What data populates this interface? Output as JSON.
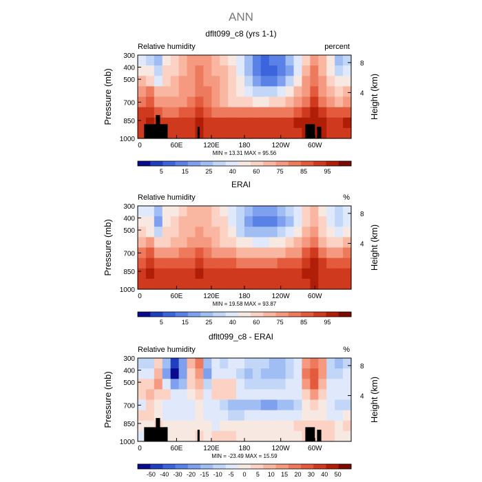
{
  "page_title": "ANN",
  "chart_data": [
    {
      "type": "heatmap",
      "title": "dflt099_c8 (yrs 1-1)",
      "subtitle_left": "Relative humidity",
      "subtitle_right": "percent",
      "ylabel": "Pressure (mb)",
      "ylabel_right": "Height (km)",
      "x_ticks": [
        "0",
        "60E",
        "120E",
        "180",
        "120W",
        "60W"
      ],
      "y_ticks": [
        "300",
        "400",
        "500",
        "700",
        "850",
        "1000"
      ],
      "y_right_ticks": [
        "8",
        "4"
      ],
      "stats": "MIN =  13.31   MAX =  95.56",
      "colorbar_labels": [
        "5",
        "15",
        "25",
        "40",
        "60",
        "75",
        "85",
        "95"
      ],
      "colorbar_colors": [
        "#0a0a8c",
        "#1f3fbf",
        "#3c64dc",
        "#5a82e6",
        "#7ea0ee",
        "#a0bef4",
        "#c2d6f8",
        "#dfe9fb",
        "#f8e8e2",
        "#fbd2c4",
        "#f9b7a2",
        "#f59a80",
        "#ee7a5d",
        "#e35a3c",
        "#cf3a1f",
        "#b01e08",
        "#7a0a02"
      ],
      "value_range": [
        0,
        100
      ],
      "terrain": true,
      "rows": [
        [
          42,
          40,
          32,
          50,
          55,
          60,
          65,
          70,
          66,
          60,
          58,
          52,
          45,
          34,
          22,
          16,
          18,
          22,
          30,
          42,
          58,
          70,
          62,
          48,
          32,
          36
        ],
        [
          52,
          48,
          36,
          55,
          58,
          62,
          67,
          72,
          68,
          62,
          60,
          55,
          46,
          30,
          18,
          13,
          15,
          20,
          28,
          42,
          60,
          72,
          64,
          50,
          36,
          42
        ],
        [
          60,
          56,
          46,
          58,
          62,
          66,
          70,
          74,
          70,
          65,
          62,
          56,
          48,
          36,
          26,
          20,
          22,
          28,
          38,
          52,
          66,
          75,
          66,
          56,
          48,
          52
        ],
        [
          66,
          72,
          60,
          62,
          64,
          66,
          70,
          76,
          72,
          66,
          62,
          56,
          50,
          44,
          40,
          38,
          40,
          45,
          52,
          60,
          70,
          80,
          70,
          62,
          58,
          60
        ],
        [
          72,
          82,
          68,
          66,
          66,
          68,
          72,
          78,
          72,
          66,
          62,
          58,
          56,
          54,
          52,
          52,
          54,
          56,
          60,
          66,
          76,
          86,
          74,
          66,
          64,
          68
        ],
        [
          84,
          88,
          80,
          76,
          76,
          78,
          80,
          84,
          80,
          76,
          74,
          72,
          72,
          72,
          72,
          72,
          72,
          74,
          76,
          80,
          86,
          90,
          84,
          78,
          78,
          82
        ],
        [
          88,
          90,
          88,
          86,
          86,
          88,
          88,
          90,
          88,
          86,
          86,
          86,
          86,
          86,
          86,
          86,
          86,
          86,
          88,
          90,
          92,
          94,
          90,
          88,
          88,
          90
        ],
        [
          86,
          88,
          88,
          86,
          86,
          88,
          88,
          90,
          88,
          88,
          88,
          88,
          86,
          86,
          86,
          86,
          86,
          86,
          86,
          88,
          90,
          92,
          90,
          88,
          88,
          88
        ]
      ]
    },
    {
      "type": "heatmap",
      "title": "ERAI",
      "subtitle_left": "Relative humidity",
      "subtitle_right": "%",
      "ylabel": "Pressure (mb)",
      "ylabel_right": "Height (km)",
      "x_ticks": [
        "0",
        "60E",
        "120E",
        "180",
        "120W",
        "60W"
      ],
      "y_ticks": [
        "300",
        "400",
        "500",
        "700",
        "850",
        "1000"
      ],
      "y_right_ticks": [
        "8",
        "4"
      ],
      "stats": "MIN =  19.58   MAX =  93.87",
      "colorbar_labels": [
        "5",
        "15",
        "25",
        "40",
        "60",
        "75",
        "85",
        "95"
      ],
      "colorbar_colors": [
        "#0a0a8c",
        "#1f3fbf",
        "#3c64dc",
        "#5a82e6",
        "#7ea0ee",
        "#a0bef4",
        "#c2d6f8",
        "#dfe9fb",
        "#f8e8e2",
        "#fbd2c4",
        "#f9b7a2",
        "#f59a80",
        "#ee7a5d",
        "#e35a3c",
        "#cf3a1f",
        "#b01e08",
        "#7a0a02"
      ],
      "value_range": [
        0,
        100
      ],
      "terrain": false,
      "rows": [
        [
          46,
          44,
          30,
          48,
          52,
          58,
          60,
          62,
          60,
          56,
          52,
          46,
          38,
          30,
          26,
          24,
          26,
          30,
          36,
          46,
          56,
          60,
          52,
          44,
          38,
          42
        ],
        [
          50,
          48,
          26,
          50,
          54,
          60,
          62,
          64,
          62,
          58,
          54,
          46,
          36,
          24,
          20,
          20,
          22,
          28,
          34,
          46,
          58,
          62,
          54,
          46,
          40,
          44
        ],
        [
          54,
          52,
          38,
          54,
          58,
          62,
          64,
          66,
          64,
          60,
          56,
          48,
          40,
          32,
          30,
          30,
          32,
          36,
          42,
          52,
          62,
          66,
          58,
          50,
          46,
          50
        ],
        [
          62,
          66,
          56,
          58,
          60,
          64,
          66,
          70,
          66,
          62,
          58,
          54,
          50,
          48,
          46,
          46,
          48,
          50,
          54,
          60,
          68,
          76,
          64,
          58,
          56,
          60
        ],
        [
          74,
          80,
          70,
          68,
          70,
          72,
          74,
          78,
          74,
          70,
          68,
          66,
          64,
          62,
          62,
          62,
          62,
          64,
          66,
          70,
          78,
          84,
          74,
          70,
          70,
          74
        ],
        [
          82,
          86,
          80,
          78,
          78,
          80,
          82,
          84,
          82,
          80,
          78,
          78,
          76,
          76,
          76,
          76,
          76,
          78,
          80,
          82,
          86,
          90,
          84,
          80,
          80,
          82
        ],
        [
          88,
          90,
          86,
          86,
          88,
          88,
          88,
          90,
          88,
          88,
          86,
          86,
          86,
          86,
          86,
          86,
          86,
          86,
          88,
          88,
          90,
          92,
          88,
          86,
          88,
          88
        ],
        [
          88,
          88,
          86,
          86,
          86,
          88,
          88,
          88,
          88,
          86,
          86,
          86,
          86,
          86,
          86,
          86,
          86,
          86,
          86,
          88,
          88,
          90,
          88,
          86,
          86,
          88
        ]
      ]
    },
    {
      "type": "heatmap",
      "title": "dflt099_c8 - ERAI",
      "subtitle_left": "Relative humidity",
      "subtitle_right": "%",
      "ylabel": "Pressure (mb)",
      "ylabel_right": "Height (km)",
      "x_ticks": [
        "0",
        "60E",
        "120E",
        "180",
        "120W",
        "60W"
      ],
      "y_ticks": [
        "300",
        "400",
        "500",
        "700",
        "850",
        "1000"
      ],
      "y_right_ticks": [
        "8",
        "4"
      ],
      "stats": "MIN = -23.49   MAX =  15.59",
      "colorbar_labels": [
        "-50",
        "-40",
        "-30",
        "-20",
        "-15",
        "-10",
        "-5",
        "0",
        "5",
        "10",
        "15",
        "20",
        "30",
        "40",
        "50"
      ],
      "colorbar_colors": [
        "#0a0a8c",
        "#1f3fbf",
        "#3c64dc",
        "#5a82e6",
        "#7ea0ee",
        "#a0bef4",
        "#c2d6f8",
        "#dfe9fb",
        "#f8e8e2",
        "#fbd2c4",
        "#f9b7a2",
        "#f59a80",
        "#ee7a5d",
        "#e35a3c",
        "#cf3a1f",
        "#b01e08",
        "#7a0a02"
      ],
      "value_range": [
        -24,
        24
      ],
      "terrain": true,
      "rows": [
        [
          -6,
          -6,
          4,
          -8,
          -20,
          -10,
          6,
          10,
          -8,
          -4,
          -6,
          -2,
          -4,
          -6,
          -6,
          -6,
          -8,
          -8,
          -6,
          -4,
          8,
          12,
          8,
          -6,
          -8,
          -6
        ],
        [
          -4,
          -2,
          6,
          -10,
          -22,
          -12,
          4,
          8,
          -10,
          -2,
          -4,
          -2,
          -6,
          -8,
          -6,
          -8,
          -8,
          -8,
          -6,
          -4,
          10,
          14,
          8,
          -6,
          -6,
          -4
        ],
        [
          2,
          4,
          8,
          -4,
          -12,
          -8,
          2,
          6,
          -6,
          2,
          4,
          2,
          -4,
          -6,
          -6,
          -6,
          -6,
          -6,
          -4,
          -2,
          8,
          14,
          6,
          -4,
          -4,
          -2
        ],
        [
          4,
          6,
          4,
          2,
          -4,
          -4,
          0,
          4,
          -2,
          4,
          4,
          2,
          -2,
          -4,
          -4,
          -4,
          -4,
          -4,
          -4,
          -2,
          4,
          8,
          4,
          -2,
          -2,
          -2
        ],
        [
          -2,
          4,
          0,
          -2,
          -4,
          -4,
          -2,
          0,
          -2,
          -4,
          -6,
          -8,
          -8,
          -8,
          -8,
          -10,
          -10,
          -8,
          -8,
          -6,
          0,
          4,
          0,
          -4,
          -6,
          -6
        ],
        [
          2,
          2,
          0,
          -2,
          -2,
          -2,
          -2,
          0,
          -2,
          -4,
          -4,
          -6,
          -6,
          -4,
          -4,
          -4,
          -4,
          -4,
          -4,
          -2,
          0,
          0,
          0,
          -2,
          -2,
          0
        ],
        [
          0,
          0,
          2,
          0,
          0,
          0,
          0,
          0,
          0,
          -2,
          0,
          0,
          0,
          0,
          0,
          0,
          0,
          0,
          0,
          2,
          2,
          2,
          2,
          2,
          0,
          2
        ],
        [
          -2,
          0,
          2,
          0,
          0,
          0,
          0,
          2,
          0,
          2,
          2,
          2,
          0,
          0,
          0,
          0,
          0,
          0,
          0,
          0,
          2,
          2,
          2,
          2,
          0,
          0
        ]
      ]
    }
  ]
}
